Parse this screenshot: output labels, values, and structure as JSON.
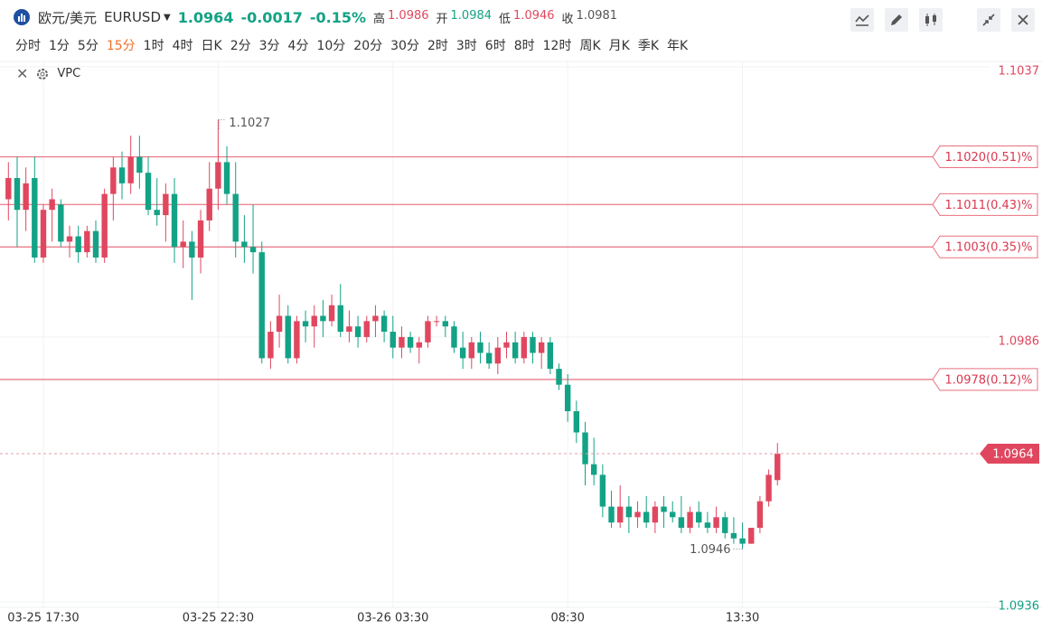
{
  "header": {
    "name": "欧元/美元",
    "symbol": "EURUSD",
    "price": "1.0964",
    "change": "-0.0017",
    "change_pct": "-0.15%",
    "stats": [
      {
        "label": "高",
        "value": "1.0986",
        "color": "#e0475f"
      },
      {
        "label": "开",
        "value": "1.0984",
        "color": "#13a285"
      },
      {
        "label": "低",
        "value": "1.0946",
        "color": "#e0475f"
      },
      {
        "label": "收",
        "value": "1.0981",
        "color": "#555555"
      }
    ]
  },
  "periods": [
    "分时",
    "1分",
    "5分",
    "15分",
    "1时",
    "4时",
    "日K",
    "2分",
    "3分",
    "4分",
    "10分",
    "20分",
    "30分",
    "2时",
    "3时",
    "6时",
    "8时",
    "12时",
    "周K",
    "月K",
    "季K",
    "年K"
  ],
  "active_period": "15分",
  "indicator": "VPC",
  "chart_data": {
    "type": "candlestick",
    "up_color": "#e0475f",
    "down_color": "#13a285",
    "categories": [
      null,
      null,
      null,
      null,
      "03-25 17:30",
      null,
      null,
      null,
      null,
      null,
      null,
      null,
      null,
      null,
      null,
      null,
      null,
      null,
      null,
      null,
      null,
      null,
      null,
      null,
      "03-25 22:30",
      null,
      null,
      null,
      null,
      null,
      null,
      null,
      null,
      null,
      null,
      null,
      null,
      null,
      null,
      null,
      null,
      null,
      null,
      null,
      "03-26 03:30",
      null,
      null,
      null,
      null,
      null,
      null,
      null,
      null,
      null,
      null,
      null,
      null,
      null,
      null,
      null,
      null,
      null,
      null,
      null,
      "08:30",
      null,
      null,
      null,
      null,
      null,
      null,
      null,
      null,
      null,
      null,
      null,
      null,
      null,
      null,
      null,
      null,
      null,
      null,
      null,
      "13:30",
      null,
      null,
      null,
      null
    ],
    "open": [
      1.1012,
      1.1016,
      1.101,
      1.1016,
      1.1001,
      1.101,
      1.1011,
      1.1004,
      1.1005,
      1.1002,
      1.1006,
      1.1001,
      1.1013,
      1.1018,
      1.1015,
      1.102,
      1.1017,
      1.101,
      1.1009,
      1.1013,
      1.1003,
      1.1004,
      1.1001,
      1.1008,
      1.1014,
      1.1019,
      1.1013,
      1.1004,
      1.1003,
      1.1002,
      1.0982,
      1.0987,
      1.099,
      1.0982,
      1.0989,
      1.0988,
      1.099,
      1.0989,
      1.0992,
      1.0987,
      1.0988,
      1.0986,
      1.0989,
      1.099,
      1.0987,
      1.0984,
      1.0986,
      1.0984,
      1.0985,
      1.0989,
      1.0989,
      1.0988,
      1.0984,
      1.0982,
      1.0985,
      1.0983,
      1.0981,
      1.0984,
      1.0985,
      1.0982,
      1.0986,
      1.0983,
      1.0985,
      1.098,
      1.0977,
      1.0972,
      1.0968,
      1.0962,
      1.096,
      1.0954,
      1.0951,
      1.0954,
      1.0952,
      1.0953,
      1.0951,
      1.0954,
      1.0953,
      1.0952,
      1.095,
      1.0953,
      1.0951,
      1.095,
      1.0952,
      1.0949,
      1.0948,
      1.0947,
      1.095,
      1.0955,
      1.0959
    ],
    "high": [
      1.1019,
      1.102,
      1.1018,
      1.102,
      1.1011,
      1.1014,
      1.1012,
      1.1007,
      1.1007,
      1.1007,
      1.1008,
      1.1014,
      1.102,
      1.1021,
      1.1024,
      1.1024,
      1.102,
      1.1016,
      1.1015,
      1.1016,
      1.1008,
      1.1006,
      1.101,
      1.1019,
      1.1027,
      1.1022,
      1.1019,
      1.1009,
      1.1011,
      1.1004,
      1.0989,
      1.0994,
      1.0992,
      1.099,
      1.0991,
      1.0992,
      1.0993,
      1.0994,
      1.0996,
      1.0991,
      1.099,
      1.099,
      1.0992,
      1.0991,
      1.099,
      1.0988,
      1.0987,
      1.0986,
      1.099,
      1.099,
      1.099,
      1.0989,
      1.0987,
      1.0986,
      1.0987,
      1.0985,
      1.0986,
      1.0987,
      1.0987,
      1.0987,
      1.0987,
      1.0986,
      1.0986,
      1.0981,
      1.0979,
      1.0974,
      1.097,
      1.0967,
      1.0962,
      1.0957,
      1.0958,
      1.0956,
      1.0955,
      1.0956,
      1.0955,
      1.0956,
      1.0955,
      1.0956,
      1.0954,
      1.0955,
      1.0953,
      1.0954,
      1.0953,
      1.0952,
      1.0951,
      1.095,
      1.0956,
      1.0961,
      1.0966
    ],
    "low": [
      1.1008,
      1.1003,
      1.1006,
      1.1,
      1.1,
      1.1004,
      1.1003,
      1.1001,
      1.1,
      1.1001,
      1.1,
      1.1,
      1.1008,
      1.1012,
      1.1013,
      1.1014,
      1.1009,
      1.1007,
      1.1004,
      1.1,
      1.0999,
      1.0993,
      1.0998,
      1.1006,
      1.101,
      1.1011,
      1.1001,
      1.1,
      1.0998,
      1.0981,
      1.098,
      1.0984,
      1.0981,
      1.0981,
      1.0985,
      1.0984,
      1.0986,
      1.0988,
      1.0986,
      1.0985,
      1.0984,
      1.0985,
      1.0986,
      1.0985,
      1.0982,
      1.0982,
      1.0983,
      1.0981,
      1.0984,
      1.0988,
      1.0986,
      1.0983,
      1.098,
      1.098,
      1.0981,
      1.098,
      1.0979,
      1.0982,
      1.0981,
      1.0981,
      1.0981,
      1.098,
      1.0979,
      1.0976,
      1.097,
      1.0966,
      1.0958,
      1.0958,
      1.0952,
      1.095,
      1.095,
      1.0949,
      1.095,
      1.095,
      1.0949,
      1.095,
      1.0951,
      1.0949,
      1.0949,
      1.095,
      1.0949,
      1.0949,
      1.0948,
      1.0947,
      1.0946,
      1.0947,
      1.0949,
      1.0954,
      1.0958
    ],
    "close": [
      1.1016,
      1.101,
      1.1015,
      1.1001,
      1.101,
      1.1012,
      1.1004,
      1.1005,
      1.1002,
      1.1006,
      1.1001,
      1.1013,
      1.1018,
      1.1015,
      1.102,
      1.1017,
      1.101,
      1.1009,
      1.1013,
      1.1003,
      1.1004,
      1.1001,
      1.1008,
      1.1014,
      1.1019,
      1.1013,
      1.1004,
      1.1003,
      1.1002,
      1.0982,
      1.0987,
      1.099,
      1.0982,
      1.0989,
      1.0988,
      1.099,
      1.0989,
      1.0992,
      1.0987,
      1.0988,
      1.0986,
      1.0989,
      1.099,
      1.0987,
      1.0984,
      1.0986,
      1.0984,
      1.0985,
      1.0989,
      1.0989,
      1.0988,
      1.0984,
      1.0982,
      1.0985,
      1.0983,
      1.0981,
      1.0984,
      1.0985,
      1.0982,
      1.0986,
      1.0983,
      1.0985,
      1.098,
      1.0977,
      1.0972,
      1.0968,
      1.0962,
      1.096,
      1.0954,
      1.0951,
      1.0954,
      1.0952,
      1.0953,
      1.0951,
      1.0954,
      1.0953,
      1.0952,
      1.095,
      1.0953,
      1.0951,
      1.095,
      1.0952,
      1.0949,
      1.0948,
      1.0947,
      1.095,
      1.0955,
      1.096,
      1.0964
    ],
    "ylim": [
      1.0935,
      1.1038
    ],
    "yticks": [
      1.1037,
      1.0986,
      1.0936
    ],
    "levels": [
      {
        "value": 1.102,
        "label": "1.1020(0.51)%"
      },
      {
        "value": 1.1011,
        "label": "1.1011(0.43)%"
      },
      {
        "value": 1.1003,
        "label": "1.1003(0.35)%"
      },
      {
        "value": 1.0978,
        "label": "1.0978(0.12)%"
      }
    ],
    "level_color": "#e9707f"
  }
}
